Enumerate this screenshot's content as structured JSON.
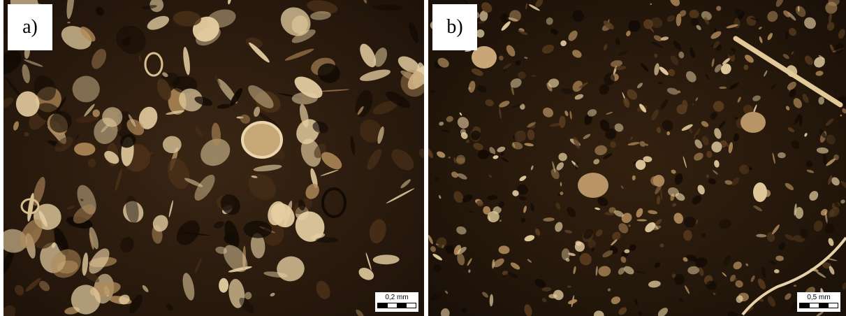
{
  "panels": [
    {
      "label": "a)",
      "scale_text": "0,2 mm"
    },
    {
      "label": "b)",
      "scale_text": "0,5 mm"
    }
  ],
  "colors": {
    "matrix_dark": "#2a1a0d",
    "grain_light": "#e6cfa2",
    "grain_mid": "#b08a5a"
  }
}
